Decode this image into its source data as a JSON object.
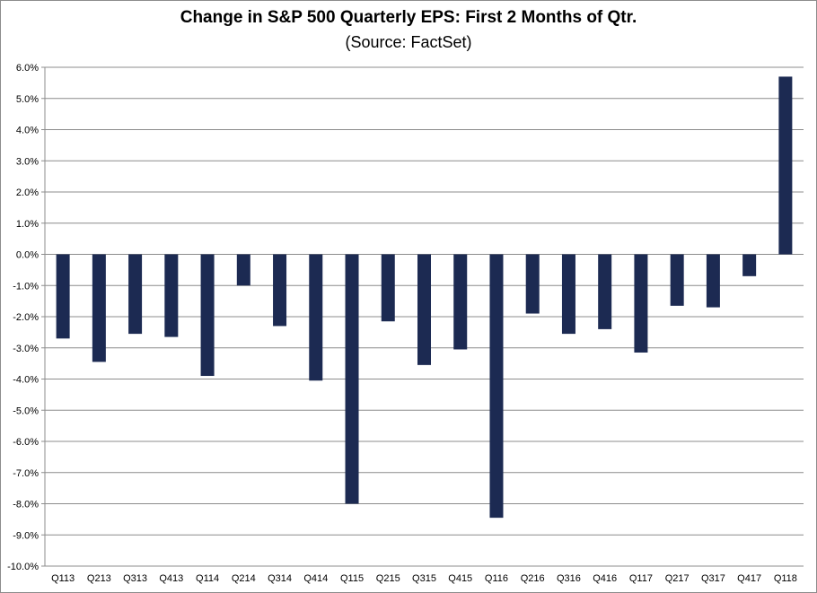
{
  "chart_data": {
    "type": "bar",
    "title": "Change in S&P 500 Quarterly EPS: First 2 Months of Qtr.",
    "subtitle": "(Source: FactSet)",
    "xlabel": "",
    "ylabel": "",
    "categories": [
      "Q113",
      "Q213",
      "Q313",
      "Q413",
      "Q114",
      "Q214",
      "Q314",
      "Q414",
      "Q115",
      "Q215",
      "Q315",
      "Q415",
      "Q116",
      "Q216",
      "Q316",
      "Q416",
      "Q117",
      "Q217",
      "Q317",
      "Q417",
      "Q118"
    ],
    "values": [
      -2.7,
      -3.45,
      -2.55,
      -2.65,
      -3.9,
      -1.0,
      -2.3,
      -4.05,
      -8.0,
      -2.15,
      -3.55,
      -3.05,
      -8.45,
      -1.9,
      -2.55,
      -2.4,
      -3.15,
      -1.65,
      -1.7,
      -0.7,
      5.7
    ],
    "ylim": [
      -10,
      6
    ],
    "yticks": [
      "6.0%",
      "5.0%",
      "4.0%",
      "3.0%",
      "2.0%",
      "1.0%",
      "0.0%",
      "-1.0%",
      "-2.0%",
      "-3.0%",
      "-4.0%",
      "-5.0%",
      "-6.0%",
      "-7.0%",
      "-8.0%",
      "-9.0%",
      "-10.0%"
    ],
    "grid": true,
    "bar_color": "#1c2a52"
  }
}
